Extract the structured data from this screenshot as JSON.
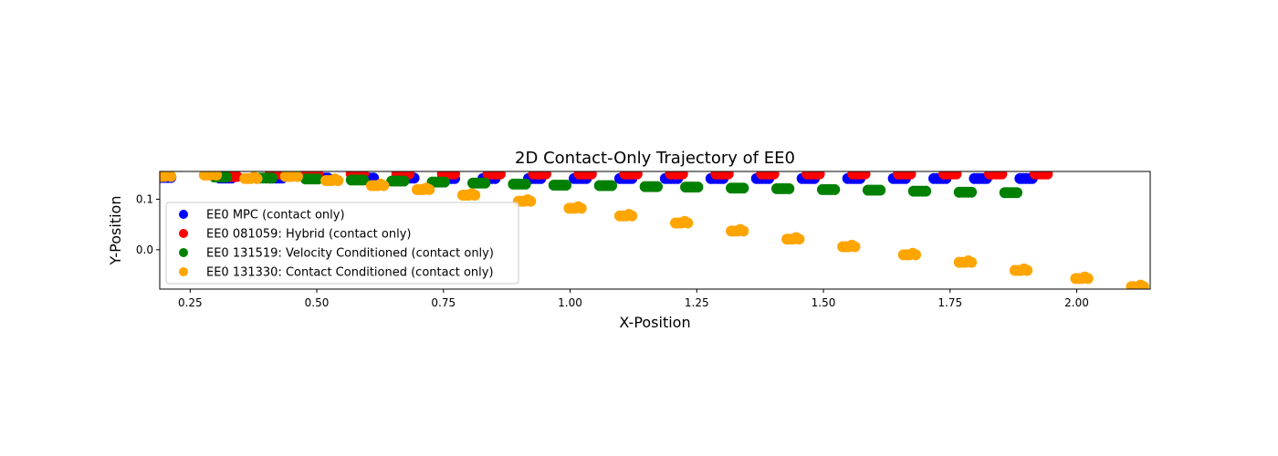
{
  "chart_data": {
    "type": "scatter",
    "title": "2D Contact-Only Trajectory of EE0",
    "xlabel": "X-Position",
    "ylabel": "Y-Position",
    "xlim": [
      0.19,
      2.145
    ],
    "ylim": [
      -0.078,
      0.155
    ],
    "xticks": [
      0.25,
      0.5,
      0.75,
      1.0,
      1.25,
      1.5,
      1.75,
      2.0
    ],
    "xtick_labels": [
      "0.25",
      "0.50",
      "0.75",
      "1.00",
      "1.25",
      "1.50",
      "1.75",
      "2.00"
    ],
    "yticks": [
      0.1,
      0.0
    ],
    "ytick_labels": [
      "0.1",
      "0.0"
    ],
    "grid": false,
    "legend_position": "lower-left",
    "series": [
      {
        "name": "EE0 MPC (contact only)",
        "color": "#0000ff",
        "clusters": [
          [
            0.2,
            0.143
          ],
          [
            0.32,
            0.142
          ],
          [
            0.42,
            0.142
          ],
          [
            0.51,
            0.142
          ],
          [
            0.6,
            0.142
          ],
          [
            0.68,
            0.142
          ],
          [
            0.76,
            0.141
          ],
          [
            0.84,
            0.141
          ],
          [
            0.93,
            0.141
          ],
          [
            1.02,
            0.141
          ],
          [
            1.11,
            0.141
          ],
          [
            1.2,
            0.141
          ],
          [
            1.29,
            0.141
          ],
          [
            1.38,
            0.141
          ],
          [
            1.47,
            0.141
          ],
          [
            1.56,
            0.141
          ],
          [
            1.65,
            0.141
          ],
          [
            1.73,
            0.141
          ],
          [
            1.81,
            0.141
          ],
          [
            1.9,
            0.141
          ]
        ]
      },
      {
        "name": "EE0 081059: Hybrid (contact only)",
        "color": "#ff0000",
        "clusters": [
          [
            0.33,
            0.145
          ],
          [
            0.42,
            0.15
          ],
          [
            0.49,
            0.15
          ],
          [
            0.58,
            0.15
          ],
          [
            0.67,
            0.15
          ],
          [
            0.76,
            0.15
          ],
          [
            0.85,
            0.15
          ],
          [
            0.94,
            0.15
          ],
          [
            1.03,
            0.15
          ],
          [
            1.12,
            0.15
          ],
          [
            1.21,
            0.15
          ],
          [
            1.3,
            0.15
          ],
          [
            1.39,
            0.15
          ],
          [
            1.48,
            0.15
          ],
          [
            1.57,
            0.15
          ],
          [
            1.66,
            0.15
          ],
          [
            1.75,
            0.15
          ],
          [
            1.84,
            0.15
          ],
          [
            1.93,
            0.15
          ]
        ]
      },
      {
        "name": "EE0 131519: Velocity Conditioned (contact only)",
        "color": "#008000",
        "clusters": [
          [
            0.31,
            0.144
          ],
          [
            0.4,
            0.142
          ],
          [
            0.49,
            0.14
          ],
          [
            0.58,
            0.138
          ],
          [
            0.66,
            0.136
          ],
          [
            0.74,
            0.134
          ],
          [
            0.82,
            0.132
          ],
          [
            0.9,
            0.13
          ],
          [
            0.98,
            0.128
          ],
          [
            1.07,
            0.127
          ],
          [
            1.16,
            0.125
          ],
          [
            1.24,
            0.124
          ],
          [
            1.33,
            0.122
          ],
          [
            1.42,
            0.121
          ],
          [
            1.51,
            0.119
          ],
          [
            1.6,
            0.118
          ],
          [
            1.69,
            0.116
          ],
          [
            1.78,
            0.114
          ],
          [
            1.87,
            0.113
          ]
        ]
      },
      {
        "name": "EE0 131330: Contact Conditioned (contact only)",
        "color": "#ffa500",
        "clusters": [
          [
            0.2,
            0.145
          ],
          [
            0.29,
            0.148
          ],
          [
            0.37,
            0.141
          ],
          [
            0.45,
            0.145
          ],
          [
            0.53,
            0.137
          ],
          [
            0.62,
            0.127
          ],
          [
            0.71,
            0.119
          ],
          [
            0.8,
            0.108
          ],
          [
            0.91,
            0.096
          ],
          [
            1.01,
            0.082
          ],
          [
            1.11,
            0.067
          ],
          [
            1.22,
            0.053
          ],
          [
            1.33,
            0.037
          ],
          [
            1.44,
            0.021
          ],
          [
            1.55,
            0.006
          ],
          [
            1.67,
            -0.01
          ],
          [
            1.78,
            -0.025
          ],
          [
            1.89,
            -0.041
          ],
          [
            2.01,
            -0.057
          ],
          [
            2.12,
            -0.073
          ]
        ]
      }
    ]
  }
}
